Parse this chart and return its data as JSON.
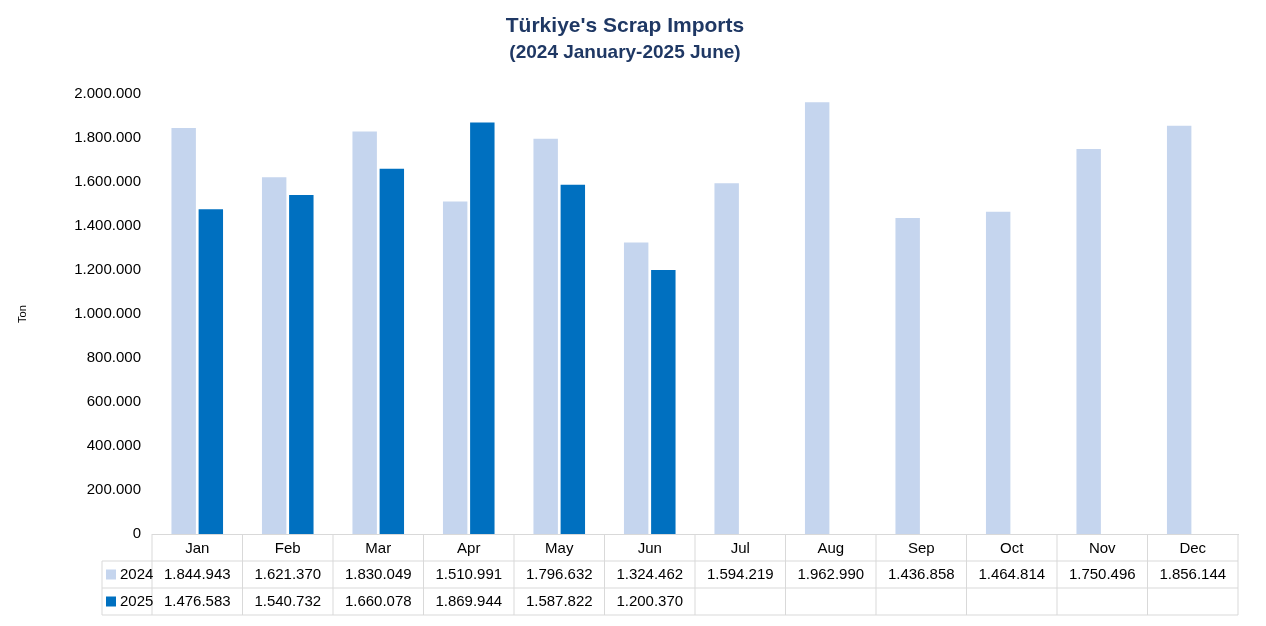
{
  "chart_data": {
    "type": "bar",
    "title": "Türkiye's Scrap Imports",
    "subtitle": "(2024 January-2025 June)",
    "ylabel": "Ton",
    "categories": [
      "Jan",
      "Feb",
      "Mar",
      "Apr",
      "May",
      "Jun",
      "Jul",
      "Aug",
      "Sep",
      "Oct",
      "Nov",
      "Dec"
    ],
    "series": [
      {
        "name": "2024",
        "color": "#c5d5ee",
        "values": [
          1844943,
          1621370,
          1830049,
          1510991,
          1796632,
          1324462,
          1594219,
          1962990,
          1436858,
          1464814,
          1750496,
          1856144
        ],
        "value_labels": [
          "1.844.943",
          "1.621.370",
          "1.830.049",
          "1.510.991",
          "1.796.632",
          "1.324.462",
          "1.594.219",
          "1.962.990",
          "1.436.858",
          "1.464.814",
          "1.750.496",
          "1.856.144"
        ]
      },
      {
        "name": "2025",
        "color": "#0070c0",
        "values": [
          1476583,
          1540732,
          1660078,
          1869944,
          1587822,
          1200370,
          null,
          null,
          null,
          null,
          null,
          null
        ],
        "value_labels": [
          "1.476.583",
          "1.540.732",
          "1.660.078",
          "1.869.944",
          "1.587.822",
          "1.200.370",
          null,
          null,
          null,
          null,
          null,
          null
        ]
      }
    ],
    "ylim": [
      0,
      2000000
    ],
    "yticks": [
      {
        "value": 0,
        "label": "0"
      },
      {
        "value": 200000,
        "label": "200.000"
      },
      {
        "value": 400000,
        "label": "400.000"
      },
      {
        "value": 600000,
        "label": "600.000"
      },
      {
        "value": 800000,
        "label": "800.000"
      },
      {
        "value": 1000000,
        "label": "1.000.000"
      },
      {
        "value": 1200000,
        "label": "1.200.000"
      },
      {
        "value": 1400000,
        "label": "1.400.000"
      },
      {
        "value": 1600000,
        "label": "1.600.000"
      },
      {
        "value": 1800000,
        "label": "1.800.000"
      },
      {
        "value": 2000000,
        "label": "2.000.000"
      }
    ],
    "grid": false,
    "legend": "bottom"
  }
}
